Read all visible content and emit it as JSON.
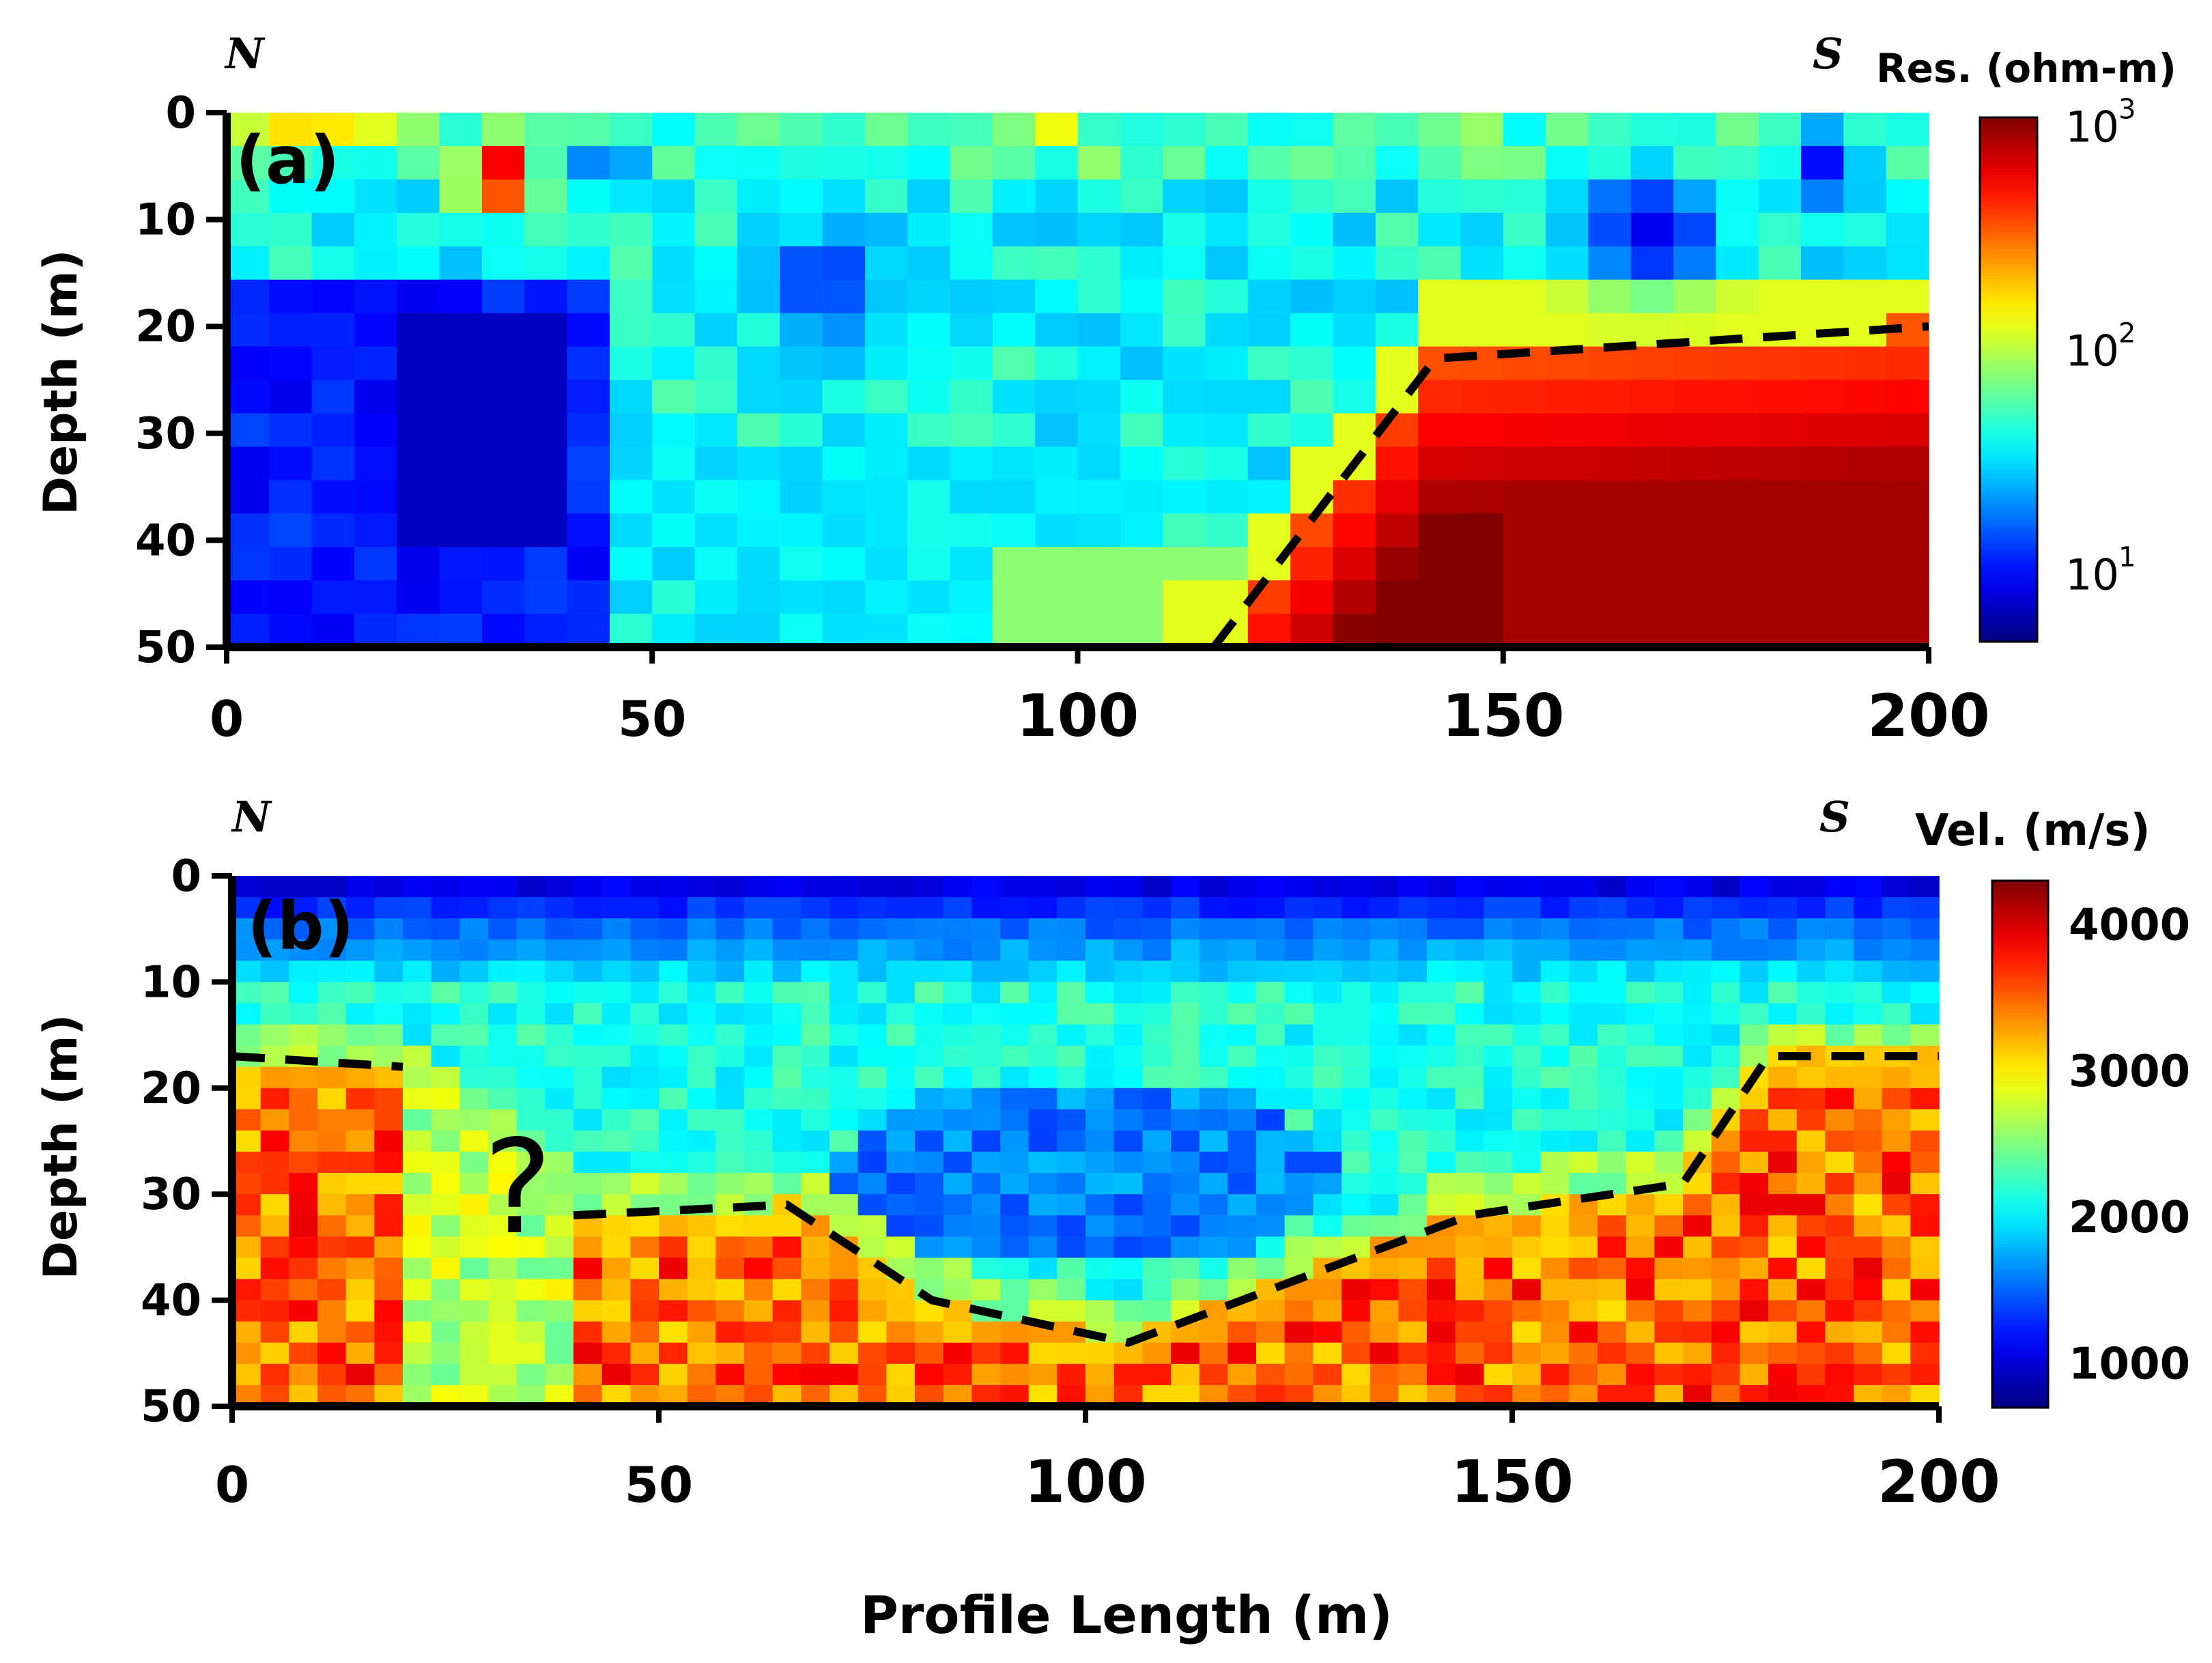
{
  "chart_data": [
    {
      "type": "heatmap",
      "panel": "(a)",
      "left_label": "N",
      "right_label": "S",
      "xlabel": "",
      "ylabel": "Depth (m)",
      "xlim": [
        0,
        200
      ],
      "ylim": [
        0,
        50
      ],
      "x_ticks": [
        "0",
        "50",
        "100",
        "150",
        "200"
      ],
      "y_ticks": [
        "0",
        "10",
        "20",
        "30",
        "40",
        "50"
      ],
      "colorbar": {
        "title": "Res. (ohm-m)",
        "scale": "log",
        "range": [
          5,
          1100
        ],
        "tick_bases": [
          "10",
          "10",
          "10"
        ],
        "tick_exps": [
          "3",
          "2",
          "1"
        ],
        "tick_values": [
          1000,
          100,
          10
        ]
      },
      "grid_size": {
        "nx": 40,
        "nz": 16
      },
      "anomalies": [
        {
          "x": 32,
          "z": 6,
          "value": 1000,
          "sx": 4,
          "sz": 3
        },
        {
          "x": 98,
          "z": 0,
          "value": 800,
          "sx": 3,
          "sz": 1.5
        },
        {
          "x": 45,
          "z": 5,
          "value": 9,
          "sx": 3,
          "sz": 3
        },
        {
          "x": 10,
          "z": 1,
          "value": 200,
          "sx": 10,
          "sz": 2
        },
        {
          "x": 70,
          "z": 16,
          "value": 11,
          "sx": 6,
          "sz": 5
        },
        {
          "x": 167,
          "z": 11,
          "value": 9,
          "sx": 8,
          "sz": 5
        },
        {
          "x": 188,
          "z": 5,
          "value": 10,
          "sx": 4,
          "sz": 4
        }
      ],
      "boundary_line": {
        "style": "dashed",
        "points": [
          [
            116,
            50
          ],
          [
            142,
            23
          ],
          [
            200,
            20
          ]
        ]
      }
    },
    {
      "type": "heatmap",
      "panel": "(b)",
      "left_label": "N",
      "right_label": "S",
      "xlabel": "Profile Length (m)",
      "ylabel": "Depth (m)",
      "xlim": [
        0,
        200
      ],
      "ylim": [
        0,
        50
      ],
      "x_ticks": [
        "0",
        "50",
        "100",
        "150",
        "200"
      ],
      "y_ticks": [
        "0",
        "10",
        "20",
        "30",
        "40",
        "50"
      ],
      "colorbar": {
        "title": "Vel. (m/s)",
        "scale": "linear",
        "range": [
          700,
          4300
        ],
        "ticks": [
          "4000",
          "3000",
          "2000",
          "1000"
        ],
        "tick_values": [
          4000,
          3000,
          2000,
          1000
        ]
      },
      "grid_size": {
        "nx": 60,
        "nz": 25
      },
      "boundary_line": {
        "style": "dashed",
        "points": [
          [
            0,
            17
          ],
          [
            20,
            18
          ]
        ],
        "points_2": [
          [
            40,
            32
          ],
          [
            65,
            31
          ],
          [
            82,
            40
          ],
          [
            105,
            44
          ],
          [
            145,
            32
          ],
          [
            170,
            29
          ],
          [
            180,
            17
          ],
          [
            200,
            17
          ]
        ]
      },
      "annotations": [
        "?"
      ]
    }
  ]
}
